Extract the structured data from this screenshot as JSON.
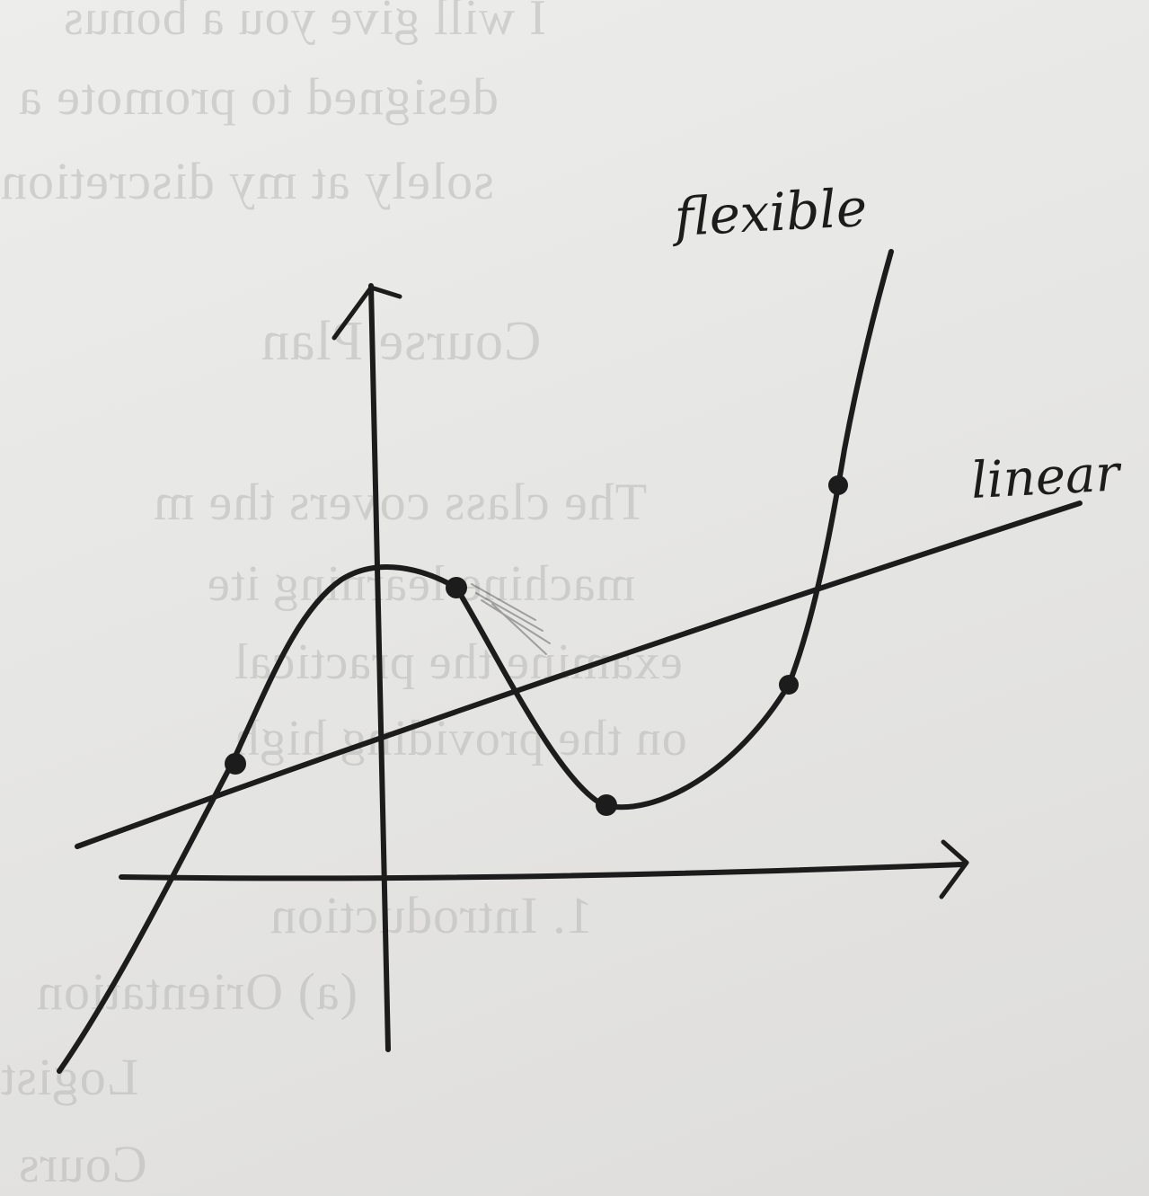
{
  "annotations": {
    "flexible_label": "flexible",
    "linear_label": "linear"
  },
  "bleed_through": [
    "I will give you a bonus",
    "designed to promote a",
    "solely at my discretion",
    "Course Plan",
    "The class covers the m",
    "machine learning ite",
    "examine the practical",
    "on the providing high",
    "1.  Introduction",
    "(a) Orientation",
    "Logist",
    "Cours"
  ],
  "colors": {
    "ink": "#1c1c1c",
    "paper": "#e9e9e7",
    "bleed": "#b9b9b7"
  }
}
